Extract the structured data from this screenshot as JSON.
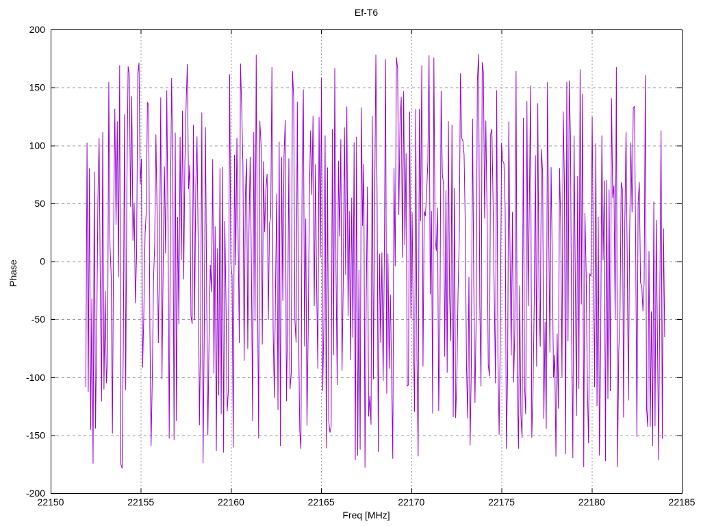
{
  "chart": {
    "title": "Ef-T6",
    "xlabel": "Freq [MHz]",
    "ylabel": "Phase",
    "x_tick_labels": [
      "22150",
      "22155",
      "22160",
      "22165",
      "22170",
      "22175",
      "22180",
      "22185"
    ],
    "y_tick_labels": [
      "-200",
      "-150",
      "-100",
      "-50",
      "0",
      "50",
      "100",
      "150",
      "200"
    ],
    "colors": {
      "trace": "#9400d3",
      "grid": "#999999",
      "axis": "#000000",
      "text": "#000000",
      "background": "#ffffff"
    }
  },
  "chart_data": {
    "type": "line",
    "title": "Ef-T6",
    "xlabel": "Freq [MHz]",
    "ylabel": "Phase",
    "xlim": [
      22150,
      22185
    ],
    "ylim": [
      -200,
      200
    ],
    "x_ticks": [
      22150,
      22155,
      22160,
      22165,
      22170,
      22175,
      22180,
      22185
    ],
    "y_ticks": [
      -200,
      -150,
      -100,
      -50,
      0,
      50,
      100,
      150,
      200
    ],
    "grid": true,
    "legend": "none",
    "series": [
      {
        "name": "Ef-T6",
        "color": "#9400d3",
        "style": "lines",
        "pattern": "wrapped-phase-noise",
        "x_start": 22151.95,
        "x_end": 22184.05,
        "n_points": 480,
        "y_min": -180,
        "y_max": 180,
        "walk_step": 300,
        "seed": 9
      }
    ]
  }
}
